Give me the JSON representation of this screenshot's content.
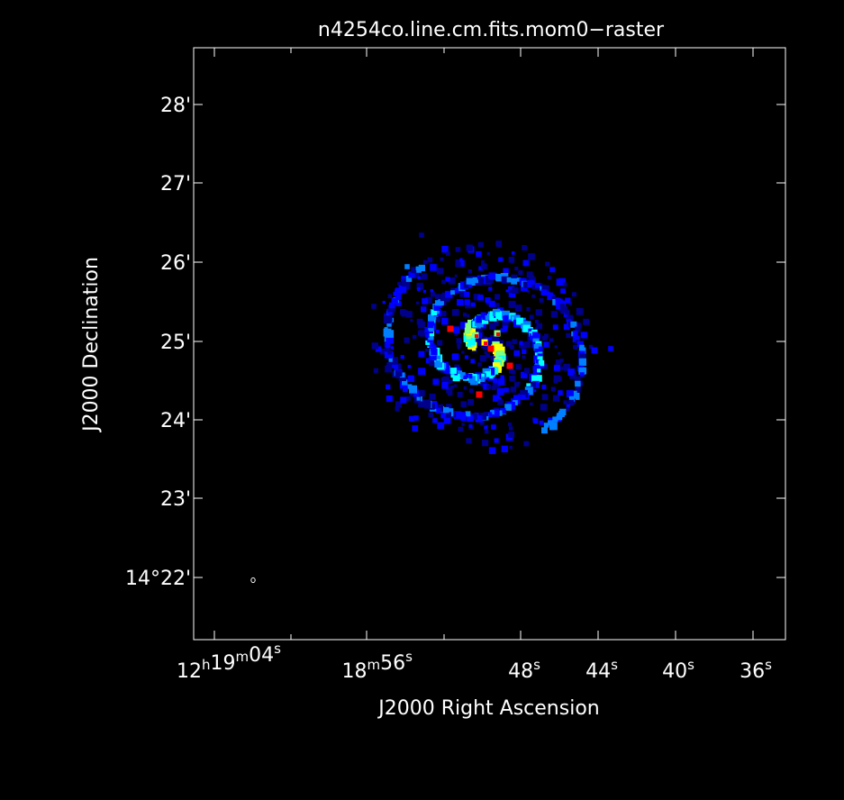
{
  "title": "n4254co.line.cm.fits.mom0−raster",
  "xlabel": "J2000 Right Ascension",
  "ylabel": "J2000 Declination",
  "colors": {
    "background": "#000000",
    "frame": "#ffffff",
    "colormap": [
      "#000000",
      "#00008b",
      "#0000ff",
      "#0080ff",
      "#00ffff",
      "#80ff80",
      "#ffff00",
      "#ff0000"
    ]
  },
  "x_ticks": [
    {
      "h": "12",
      "hu": "h",
      "m": "19",
      "mu": "m",
      "s": "04",
      "su": "s"
    },
    {
      "m": "18",
      "mu": "m",
      "s": "56",
      "su": "s"
    },
    {
      "s": "48",
      "su": "s"
    },
    {
      "s": "44",
      "su": "s"
    },
    {
      "s": "40",
      "su": "s"
    },
    {
      "s": "36",
      "su": "s"
    }
  ],
  "y_ticks": [
    {
      "label": "28'"
    },
    {
      "label": "27'"
    },
    {
      "label": "26'"
    },
    {
      "label": "25'"
    },
    {
      "label": "24'"
    },
    {
      "label": "23'"
    },
    {
      "label": "14°22'"
    }
  ],
  "image": {
    "description_type": "moment-0 raster of spiral galaxy CO emission",
    "colormap": "rainbow"
  }
}
